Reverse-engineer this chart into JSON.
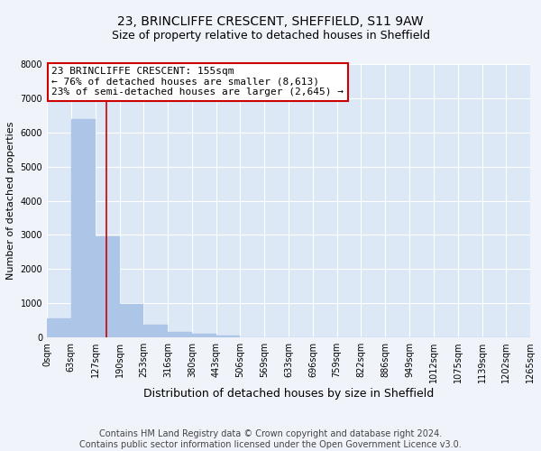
{
  "title": "23, BRINCLIFFE CRESCENT, SHEFFIELD, S11 9AW",
  "subtitle": "Size of property relative to detached houses in Sheffield",
  "xlabel": "Distribution of detached houses by size in Sheffield",
  "ylabel": "Number of detached properties",
  "bar_edges": [
    0,
    63,
    127,
    190,
    253,
    316,
    380,
    443,
    506,
    569,
    633,
    696,
    759,
    822,
    886,
    949,
    1012,
    1075,
    1139,
    1202,
    1265
  ],
  "bar_heights": [
    550,
    6400,
    2950,
    990,
    380,
    175,
    100,
    60,
    0,
    0,
    0,
    0,
    0,
    0,
    0,
    0,
    0,
    0,
    0,
    0
  ],
  "bar_color": "#adc6e8",
  "bar_edgecolor": "#adc6e8",
  "property_line_x": 155,
  "property_line_color": "#cc0000",
  "ylim": [
    0,
    8000
  ],
  "yticks": [
    0,
    1000,
    2000,
    3000,
    4000,
    5000,
    6000,
    7000,
    8000
  ],
  "annotation_line1": "23 BRINCLIFFE CRESCENT: 155sqm",
  "annotation_line2": "← 76% of detached houses are smaller (8,613)",
  "annotation_line3": "23% of semi-detached houses are larger (2,645) →",
  "footer_line1": "Contains HM Land Registry data © Crown copyright and database right 2024.",
  "footer_line2": "Contains public sector information licensed under the Open Government Licence v3.0.",
  "fig_bg_color": "#f0f4fa",
  "plot_bg_color": "#dce8f5",
  "grid_color": "#ffffff",
  "title_fontsize": 10,
  "subtitle_fontsize": 9,
  "annotation_fontsize": 8,
  "tick_label_fontsize": 7,
  "ylabel_fontsize": 8,
  "xlabel_fontsize": 9,
  "footer_fontsize": 7
}
